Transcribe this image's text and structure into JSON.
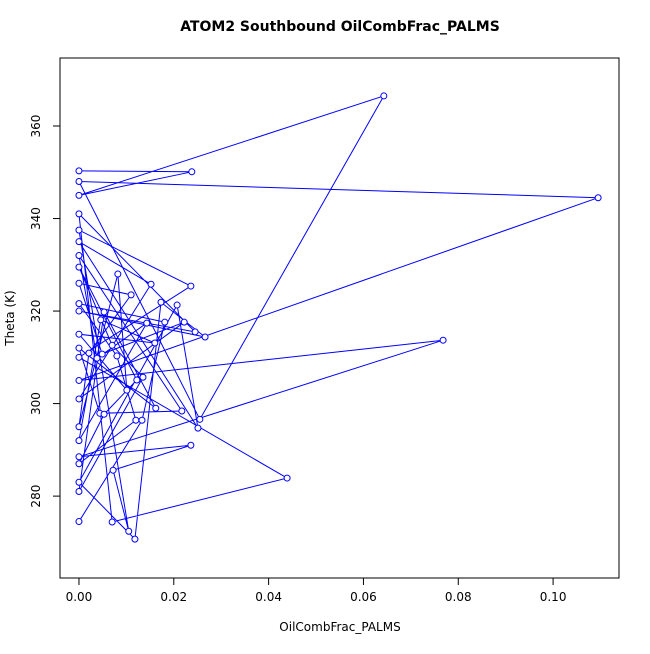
{
  "chart_data": {
    "type": "line",
    "title": "ATOM2 Southbound OilCombFrac_PALMS",
    "x_label": "OilCombFrac_PALMS",
    "y_label": "Theta (K)",
    "series": [
      {
        "color": "#0000ff",
        "x": [
          0,
          0.0238,
          0,
          0.0643,
          0.0255,
          0,
          0.1095,
          0,
          0.0768,
          0,
          0.0236,
          0.0072,
          0.0105,
          0,
          0.0236,
          0,
          0.0439,
          0.007,
          0,
          0.0245,
          0,
          0.0266,
          0.0173,
          0.0118,
          0,
          0.0207,
          0.0251,
          0,
          0.0152,
          0,
          0.0222,
          0.0049,
          0,
          0.011,
          0.0021,
          0,
          0.0082,
          0.0101,
          0,
          0.016,
          0.0046,
          0,
          0.0143,
          0.0038,
          0,
          0.0217,
          0.0044,
          0,
          0.0162,
          0.0053,
          0,
          0.0135,
          0.007,
          0,
          0.0122,
          0.0053,
          0,
          0.012,
          0.008,
          0,
          0.0181,
          0.0133,
          0
        ],
        "values": [
          350.3,
          350.1,
          345,
          366.5,
          296.6,
          348,
          344.5,
          305,
          313.7,
          288.5,
          291,
          285.6,
          272.4,
          337.5,
          325.4,
          310,
          283.9,
          274.4,
          341,
          315.5,
          320,
          314.4,
          321.9,
          270.7,
          283,
          321.3,
          294.7,
          335,
          325.8,
          301,
          317.6,
          310.7,
          326,
          323.5,
          310.9,
          295,
          328,
          302.9,
          315,
          313.1,
          318.1,
          292,
          317.4,
          309.8,
          332,
          298.4,
          297.9,
          312,
          299,
          319.8,
          281,
          305.7,
          312.6,
          329.5,
          305.1,
          297.7,
          287,
          296.4,
          310.3,
          321.6,
          317.6,
          296.4,
          274.5
        ]
      }
    ],
    "xlim": [
      -0.004,
      0.1139
    ],
    "ylim": [
      262.3,
      374.7
    ],
    "xticks": [
      {
        "value": 0,
        "label": "0.00"
      },
      {
        "value": 0.02,
        "label": "0.02"
      },
      {
        "value": 0.04,
        "label": "0.04"
      },
      {
        "value": 0.06,
        "label": "0.06"
      },
      {
        "value": 0.08,
        "label": "0.08"
      },
      {
        "value": 0.1,
        "label": "0.10"
      }
    ],
    "yticks": [
      280,
      300,
      320,
      340,
      360
    ]
  }
}
